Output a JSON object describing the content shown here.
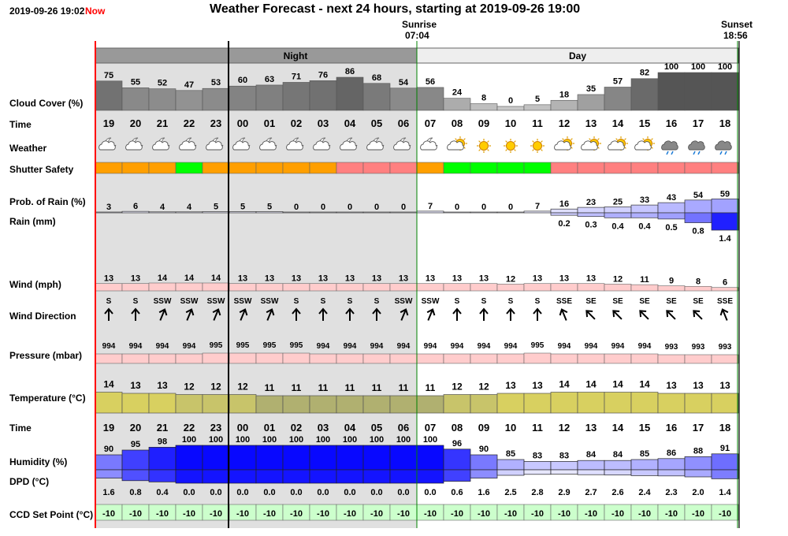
{
  "header": {
    "timestamp": "2019-09-26 19:02",
    "now_label": "Now",
    "title": "Weather Forecast - next 24 hours, starting at 2019-09-26 19:00",
    "sunrise_label": "Sunrise",
    "sunrise_time": "07:04",
    "sunset_label": "Sunset",
    "sunset_time": "18:56"
  },
  "bands": {
    "night": "Night",
    "day": "Day"
  },
  "row_labels": {
    "cloud": "Cloud Cover (%)",
    "time": "Time",
    "weather": "Weather",
    "shutter": "Shutter Safety",
    "rain_prob": "Prob. of Rain (%)",
    "rain_mm": "Rain (mm)",
    "wind": "Wind (mph)",
    "wind_dir": "Wind Direction",
    "pressure": "Pressure (mbar)",
    "temperature": "Temperature (°C)",
    "time2": "Time",
    "humidity": "Humidity (%)",
    "dpd": "DPD (°C)",
    "ccd": "CCD Set Point (°C)"
  },
  "colors": {
    "night_bg": "#e0e0e0",
    "band_night": "#999999",
    "band_day": "#eeeeee",
    "shutter_amber": "#ff9f00",
    "shutter_green": "#00ff00",
    "shutter_red": "#ff8080",
    "pressure_fill": "#ffcccc",
    "wind_fill": "#ffcccc",
    "temp_yellow": "#d8d060",
    "temp_olive": "#b0b070",
    "ccd_fill": "#ccffcc",
    "rain_blue": "#2020ff",
    "now_line": "#ff0000",
    "sun_line": "#008000"
  },
  "chart_data": {
    "type": "table",
    "hours": [
      "19",
      "20",
      "21",
      "22",
      "23",
      "00",
      "01",
      "02",
      "03",
      "04",
      "05",
      "06",
      "07",
      "08",
      "09",
      "10",
      "11",
      "12",
      "13",
      "14",
      "15",
      "16",
      "17",
      "18"
    ],
    "night_hour_count": 12,
    "cloud_cover": [
      75,
      55,
      52,
      47,
      53,
      60,
      63,
      71,
      76,
      86,
      68,
      54,
      56,
      24,
      8,
      0,
      5,
      18,
      35,
      57,
      82,
      100,
      100,
      100
    ],
    "weather_icons": [
      "partly-cloudy-night-icon",
      "partly-cloudy-night-icon",
      "partly-cloudy-night-icon",
      "partly-cloudy-night-icon",
      "partly-cloudy-night-icon",
      "partly-cloudy-night-icon",
      "partly-cloudy-night-icon",
      "partly-cloudy-night-icon",
      "partly-cloudy-night-icon",
      "partly-cloudy-night-icon",
      "partly-cloudy-night-icon",
      "partly-cloudy-night-icon",
      "partly-cloudy-night-icon",
      "partly-cloudy-day-icon",
      "sunny-icon",
      "sunny-icon",
      "sunny-icon",
      "partly-cloudy-day-icon",
      "partly-cloudy-day-icon",
      "partly-cloudy-day-icon",
      "partly-cloudy-day-icon",
      "rain-cloud-icon",
      "rain-cloud-icon",
      "rain-cloud-icon"
    ],
    "shutter_safety": [
      "amber",
      "amber",
      "amber",
      "green",
      "amber",
      "amber",
      "amber",
      "amber",
      "amber",
      "red",
      "red",
      "red",
      "amber",
      "green",
      "green",
      "green",
      "green",
      "red",
      "red",
      "red",
      "red",
      "red",
      "red",
      "red"
    ],
    "rain_probability": [
      3,
      6,
      4,
      4,
      5,
      5,
      5,
      0,
      0,
      0,
      0,
      0,
      7,
      0,
      0,
      0,
      7,
      16,
      23,
      25,
      33,
      43,
      54,
      59
    ],
    "rain_mm": [
      null,
      null,
      null,
      null,
      null,
      null,
      null,
      null,
      null,
      null,
      null,
      null,
      null,
      null,
      null,
      null,
      null,
      0.2,
      0.3,
      0.4,
      0.4,
      0.5,
      0.8,
      1.4
    ],
    "wind_mph": [
      13,
      13,
      14,
      14,
      14,
      13,
      13,
      13,
      13,
      13,
      13,
      13,
      13,
      13,
      13,
      12,
      13,
      13,
      13,
      12,
      11,
      9,
      8,
      6
    ],
    "wind_direction": [
      "S",
      "S",
      "SSW",
      "SSW",
      "SSW",
      "SSW",
      "SSW",
      "S",
      "S",
      "S",
      "S",
      "SSW",
      "SSW",
      "S",
      "S",
      "S",
      "S",
      "SSE",
      "SE",
      "SE",
      "SE",
      "SE",
      "SE",
      "SSE"
    ],
    "pressure_mbar": [
      994,
      994,
      994,
      994,
      995,
      995,
      995,
      995,
      994,
      994,
      994,
      994,
      994,
      994,
      994,
      994,
      995,
      994,
      994,
      994,
      994,
      993,
      993,
      993
    ],
    "temperature_c": [
      14,
      13,
      13,
      12,
      12,
      12,
      11,
      11,
      11,
      11,
      11,
      11,
      11,
      12,
      12,
      13,
      13,
      14,
      14,
      14,
      14,
      13,
      13,
      13
    ],
    "humidity_pct": [
      90,
      95,
      98,
      100,
      100,
      100,
      100,
      100,
      100,
      100,
      100,
      100,
      100,
      96,
      90,
      85,
      83,
      83,
      84,
      84,
      85,
      86,
      88,
      91
    ],
    "dpd_c": [
      "1.6",
      "0.8",
      "0.4",
      "0.0",
      "0.0",
      "0.0",
      "0.0",
      "0.0",
      "0.0",
      "0.0",
      "0.0",
      "0.0",
      "0.0",
      "0.6",
      "1.6",
      "2.5",
      "2.8",
      "2.9",
      "2.7",
      "2.6",
      "2.4",
      "2.3",
      "2.0",
      "1.4"
    ],
    "ccd_set_point_c": [
      -10,
      -10,
      -10,
      -10,
      -10,
      -10,
      -10,
      -10,
      -10,
      -10,
      -10,
      -10,
      -10,
      -10,
      -10,
      -10,
      -10,
      -10,
      -10,
      -10,
      -10,
      -10,
      -10,
      -10
    ]
  }
}
